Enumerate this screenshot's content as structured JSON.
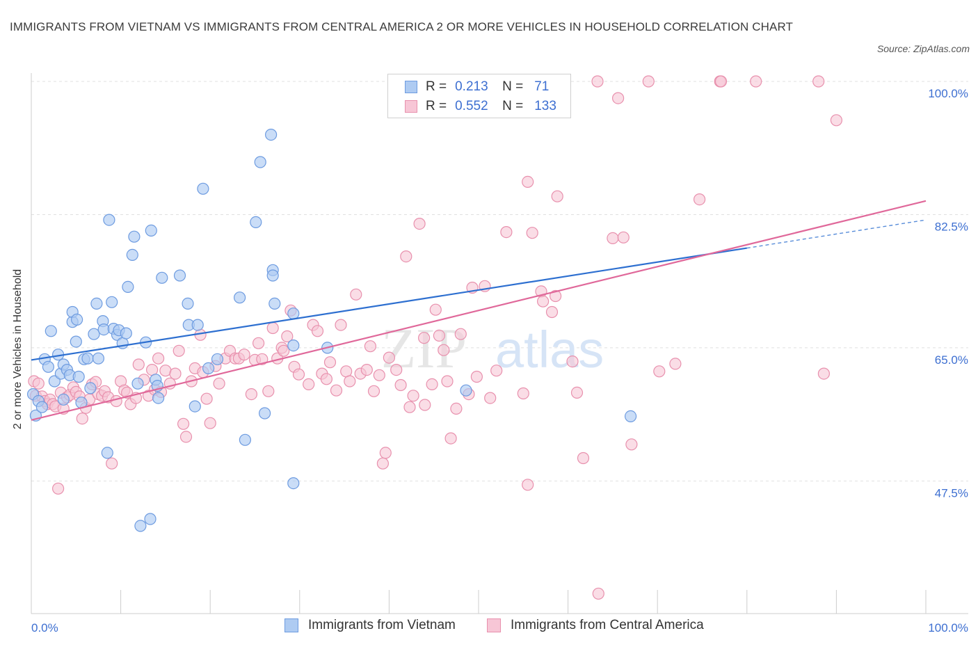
{
  "title": "IMMIGRANTS FROM VIETNAM VS IMMIGRANTS FROM CENTRAL AMERICA 2 OR MORE VEHICLES IN HOUSEHOLD CORRELATION CHART",
  "source": "Source: ZipAtlas.com",
  "watermark": {
    "part1": "ZIP",
    "part2": "atlas"
  },
  "legend": {
    "r_label": "R =",
    "n_label": "N =",
    "rows": [
      {
        "r": "0.213",
        "n": "71"
      },
      {
        "r": "0.552",
        "n": "133"
      }
    ]
  },
  "colors": {
    "blue_fill": "#aecbf2",
    "blue_stroke": "#6d9be0",
    "blue_line": "#2d6fd0",
    "pink_fill": "#f7c6d6",
    "pink_stroke": "#e890ad",
    "pink_line": "#e0689a",
    "axis_text": "#3d6fd1",
    "grid": "#e0e0e0"
  },
  "chart_data": {
    "type": "scatter",
    "title": "IMMIGRANTS FROM VIETNAM VS IMMIGRANTS FROM CENTRAL AMERICA 2 OR MORE VEHICLES IN HOUSEHOLD CORRELATION CHART",
    "xlabel": "",
    "ylabel": "2 or more Vehicles in Household",
    "x_tick_labels": [
      "0.0%",
      "100.0%"
    ],
    "y_tick_labels": [
      "100.0%",
      "82.5%",
      "65.0%",
      "47.5%"
    ],
    "y_ticks": [
      100.0,
      82.5,
      65.0,
      47.5
    ],
    "xlim": [
      0,
      100
    ],
    "ylim": [
      30,
      101
    ],
    "grid": true,
    "legend_position": "top-center",
    "series": [
      {
        "name": "Immigrants from Vietnam",
        "r": 0.213,
        "n": 71,
        "trend": {
          "x0": 0,
          "y0": 63.4,
          "x1": 80,
          "y1": 78.1,
          "dash_to_x": 100,
          "dash_to_y": 81.8
        },
        "points": [
          [
            0.2,
            58.9
          ],
          [
            0.5,
            56.1
          ],
          [
            0.8,
            58.0
          ],
          [
            1.2,
            57.2
          ],
          [
            1.5,
            63.5
          ],
          [
            1.9,
            62.5
          ],
          [
            2.2,
            67.2
          ],
          [
            2.6,
            60.6
          ],
          [
            3.0,
            64.1
          ],
          [
            3.3,
            61.6
          ],
          [
            3.6,
            58.2
          ],
          [
            3.6,
            62.8
          ],
          [
            4.0,
            62.1
          ],
          [
            4.3,
            61.4
          ],
          [
            4.6,
            68.4
          ],
          [
            4.6,
            69.7
          ],
          [
            5.0,
            65.8
          ],
          [
            5.1,
            68.7
          ],
          [
            5.3,
            61.2
          ],
          [
            5.6,
            57.8
          ],
          [
            5.9,
            63.5
          ],
          [
            6.3,
            63.6
          ],
          [
            6.6,
            59.7
          ],
          [
            7.0,
            66.8
          ],
          [
            7.3,
            70.8
          ],
          [
            7.5,
            63.6
          ],
          [
            8.0,
            68.5
          ],
          [
            8.1,
            67.4
          ],
          [
            8.5,
            51.2
          ],
          [
            8.7,
            81.8
          ],
          [
            9.0,
            71.0
          ],
          [
            9.2,
            67.5
          ],
          [
            9.6,
            66.7
          ],
          [
            9.8,
            67.3
          ],
          [
            10.2,
            65.6
          ],
          [
            10.6,
            66.9
          ],
          [
            10.8,
            73.0
          ],
          [
            11.3,
            77.2
          ],
          [
            11.5,
            79.6
          ],
          [
            11.9,
            60.3
          ],
          [
            12.2,
            41.6
          ],
          [
            12.8,
            65.7
          ],
          [
            13.3,
            42.5
          ],
          [
            13.4,
            80.4
          ],
          [
            13.9,
            60.8
          ],
          [
            14.1,
            60.0
          ],
          [
            14.2,
            58.4
          ],
          [
            14.6,
            74.2
          ],
          [
            16.6,
            74.5
          ],
          [
            17.5,
            70.8
          ],
          [
            17.6,
            68.0
          ],
          [
            18.3,
            57.3
          ],
          [
            18.6,
            68.0
          ],
          [
            19.2,
            85.9
          ],
          [
            19.8,
            62.3
          ],
          [
            20.8,
            63.5
          ],
          [
            23.3,
            71.6
          ],
          [
            23.9,
            52.9
          ],
          [
            25.1,
            81.5
          ],
          [
            25.6,
            89.4
          ],
          [
            26.1,
            56.4
          ],
          [
            26.8,
            93.0
          ],
          [
            27.0,
            75.2
          ],
          [
            27.0,
            74.5
          ],
          [
            27.2,
            70.8
          ],
          [
            29.3,
            69.5
          ],
          [
            29.3,
            65.3
          ],
          [
            29.3,
            47.2
          ],
          [
            33.1,
            65.0
          ],
          [
            48.6,
            59.4
          ],
          [
            67.0,
            56.0
          ]
        ]
      },
      {
        "name": "Immigrants from Central America",
        "r": 0.552,
        "n": 133,
        "trend": {
          "x0": 0,
          "y0": 55.5,
          "x1": 100,
          "y1": 84.3
        },
        "points": [
          [
            0.3,
            60.6
          ],
          [
            0.5,
            58.7
          ],
          [
            0.8,
            60.3
          ],
          [
            1.2,
            58.6
          ],
          [
            1.5,
            58.0
          ],
          [
            1.8,
            57.6
          ],
          [
            2.1,
            58.2
          ],
          [
            2.4,
            57.6
          ],
          [
            2.7,
            57.3
          ],
          [
            3.0,
            46.5
          ],
          [
            3.3,
            59.1
          ],
          [
            3.6,
            57.0
          ],
          [
            4.0,
            58.5
          ],
          [
            4.3,
            58.8
          ],
          [
            4.7,
            59.8
          ],
          [
            5.0,
            59.2
          ],
          [
            5.4,
            58.6
          ],
          [
            5.7,
            55.7
          ],
          [
            6.1,
            57.1
          ],
          [
            6.5,
            58.2
          ],
          [
            6.8,
            60.2
          ],
          [
            7.2,
            60.5
          ],
          [
            7.5,
            58.9
          ],
          [
            7.9,
            58.7
          ],
          [
            8.2,
            59.3
          ],
          [
            8.6,
            58.5
          ],
          [
            9.0,
            49.8
          ],
          [
            9.5,
            58.0
          ],
          [
            10.0,
            60.6
          ],
          [
            10.4,
            59.4
          ],
          [
            10.7,
            59.1
          ],
          [
            11.1,
            57.6
          ],
          [
            11.7,
            58.4
          ],
          [
            12.0,
            62.8
          ],
          [
            12.6,
            60.8
          ],
          [
            13.1,
            58.7
          ],
          [
            13.5,
            62.1
          ],
          [
            13.8,
            59.5
          ],
          [
            14.2,
            63.6
          ],
          [
            14.5,
            59.2
          ],
          [
            15.0,
            62.0
          ],
          [
            15.5,
            60.3
          ],
          [
            16.1,
            61.6
          ],
          [
            16.5,
            64.6
          ],
          [
            17.0,
            55.0
          ],
          [
            17.3,
            53.3
          ],
          [
            17.9,
            60.6
          ],
          [
            18.3,
            62.3
          ],
          [
            18.9,
            66.7
          ],
          [
            19.2,
            61.8
          ],
          [
            19.6,
            58.3
          ],
          [
            20.0,
            55.1
          ],
          [
            20.6,
            62.6
          ],
          [
            21.0,
            60.3
          ],
          [
            21.7,
            63.6
          ],
          [
            22.2,
            64.6
          ],
          [
            22.8,
            63.6
          ],
          [
            23.2,
            63.6
          ],
          [
            23.8,
            64.1
          ],
          [
            24.6,
            58.9
          ],
          [
            25.0,
            63.4
          ],
          [
            25.4,
            65.6
          ],
          [
            25.8,
            63.5
          ],
          [
            26.5,
            59.3
          ],
          [
            27.0,
            67.6
          ],
          [
            27.5,
            63.6
          ],
          [
            28.0,
            65.0
          ],
          [
            28.2,
            64.6
          ],
          [
            28.6,
            66.5
          ],
          [
            29.0,
            69.9
          ],
          [
            29.4,
            62.5
          ],
          [
            29.9,
            61.5
          ],
          [
            31.0,
            60.2
          ],
          [
            31.5,
            68.0
          ],
          [
            32.0,
            67.2
          ],
          [
            32.5,
            61.6
          ],
          [
            33.0,
            60.9
          ],
          [
            33.4,
            63.1
          ],
          [
            34.1,
            59.4
          ],
          [
            34.6,
            68.0
          ],
          [
            35.2,
            61.9
          ],
          [
            35.6,
            60.6
          ],
          [
            36.3,
            72.0
          ],
          [
            36.8,
            61.6
          ],
          [
            37.5,
            62.1
          ],
          [
            37.9,
            65.2
          ],
          [
            38.3,
            59.3
          ],
          [
            38.9,
            61.4
          ],
          [
            39.3,
            49.8
          ],
          [
            39.6,
            51.2
          ],
          [
            40.0,
            63.7
          ],
          [
            40.8,
            62.1
          ],
          [
            41.3,
            60.1
          ],
          [
            41.9,
            77.0
          ],
          [
            42.3,
            57.2
          ],
          [
            42.7,
            58.7
          ],
          [
            43.4,
            81.3
          ],
          [
            43.9,
            66.3
          ],
          [
            44.0,
            57.5
          ],
          [
            44.8,
            60.2
          ],
          [
            45.2,
            70.0
          ],
          [
            45.6,
            66.6
          ],
          [
            46.1,
            64.7
          ],
          [
            46.5,
            60.6
          ],
          [
            46.9,
            53.1
          ],
          [
            47.5,
            57.0
          ],
          [
            48.0,
            66.8
          ],
          [
            48.9,
            58.9
          ],
          [
            49.3,
            72.9
          ],
          [
            49.8,
            61.2
          ],
          [
            50.7,
            73.1
          ],
          [
            51.3,
            58.4
          ],
          [
            52.0,
            62.0
          ],
          [
            53.1,
            80.2
          ],
          [
            55.0,
            59.0
          ],
          [
            55.5,
            47.0
          ],
          [
            55.5,
            86.8
          ],
          [
            56.0,
            80.1
          ],
          [
            57.0,
            72.4
          ],
          [
            57.2,
            71.1
          ],
          [
            58.2,
            69.7
          ],
          [
            58.6,
            71.8
          ],
          [
            58.8,
            84.9
          ],
          [
            60.5,
            63.2
          ],
          [
            61.0,
            59.1
          ],
          [
            61.7,
            50.5
          ],
          [
            63.3,
            100.0
          ],
          [
            63.4,
            32.7
          ],
          [
            65.6,
            97.8
          ],
          [
            65.0,
            79.4
          ],
          [
            66.2,
            79.5
          ],
          [
            67.1,
            52.3
          ],
          [
            69.0,
            100.0
          ],
          [
            70.2,
            61.9
          ],
          [
            72.0,
            62.9
          ],
          [
            74.7,
            84.5
          ],
          [
            77.0,
            100.0
          ],
          [
            77.1,
            100.0
          ],
          [
            81.0,
            100.0
          ],
          [
            88.0,
            100.0
          ],
          [
            88.6,
            61.6
          ],
          [
            90.0,
            94.9
          ]
        ]
      }
    ]
  }
}
